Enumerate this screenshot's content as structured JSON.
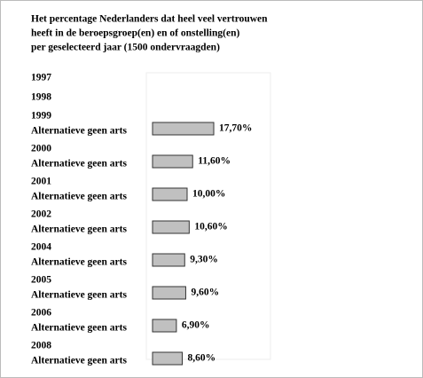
{
  "chart_data": {
    "type": "hbar",
    "title": [
      "Het percentage Nederlanders dat heel veel vertrouwen",
      "heeft in de beroepsgroep(en) en of onstelling(en)",
      "per geselecteerd jaar (1500 ondervraagden)"
    ],
    "categories": [
      "1997",
      "1998",
      "1999",
      "2000",
      "2001",
      "2002",
      "2004",
      "2005",
      "2006",
      "2008"
    ],
    "series": [
      {
        "name": "Alternatieve geen arts",
        "color": "#c0c0c0",
        "values": [
          null,
          null,
          17.7,
          11.6,
          10.0,
          10.6,
          9.3,
          9.6,
          6.9,
          8.6
        ],
        "value_labels": [
          null,
          null,
          "17,70%",
          "11,60%",
          "10,00%",
          "10,60%",
          "9,30%",
          "9,60%",
          "6,90%",
          "8,60%"
        ]
      }
    ]
  }
}
